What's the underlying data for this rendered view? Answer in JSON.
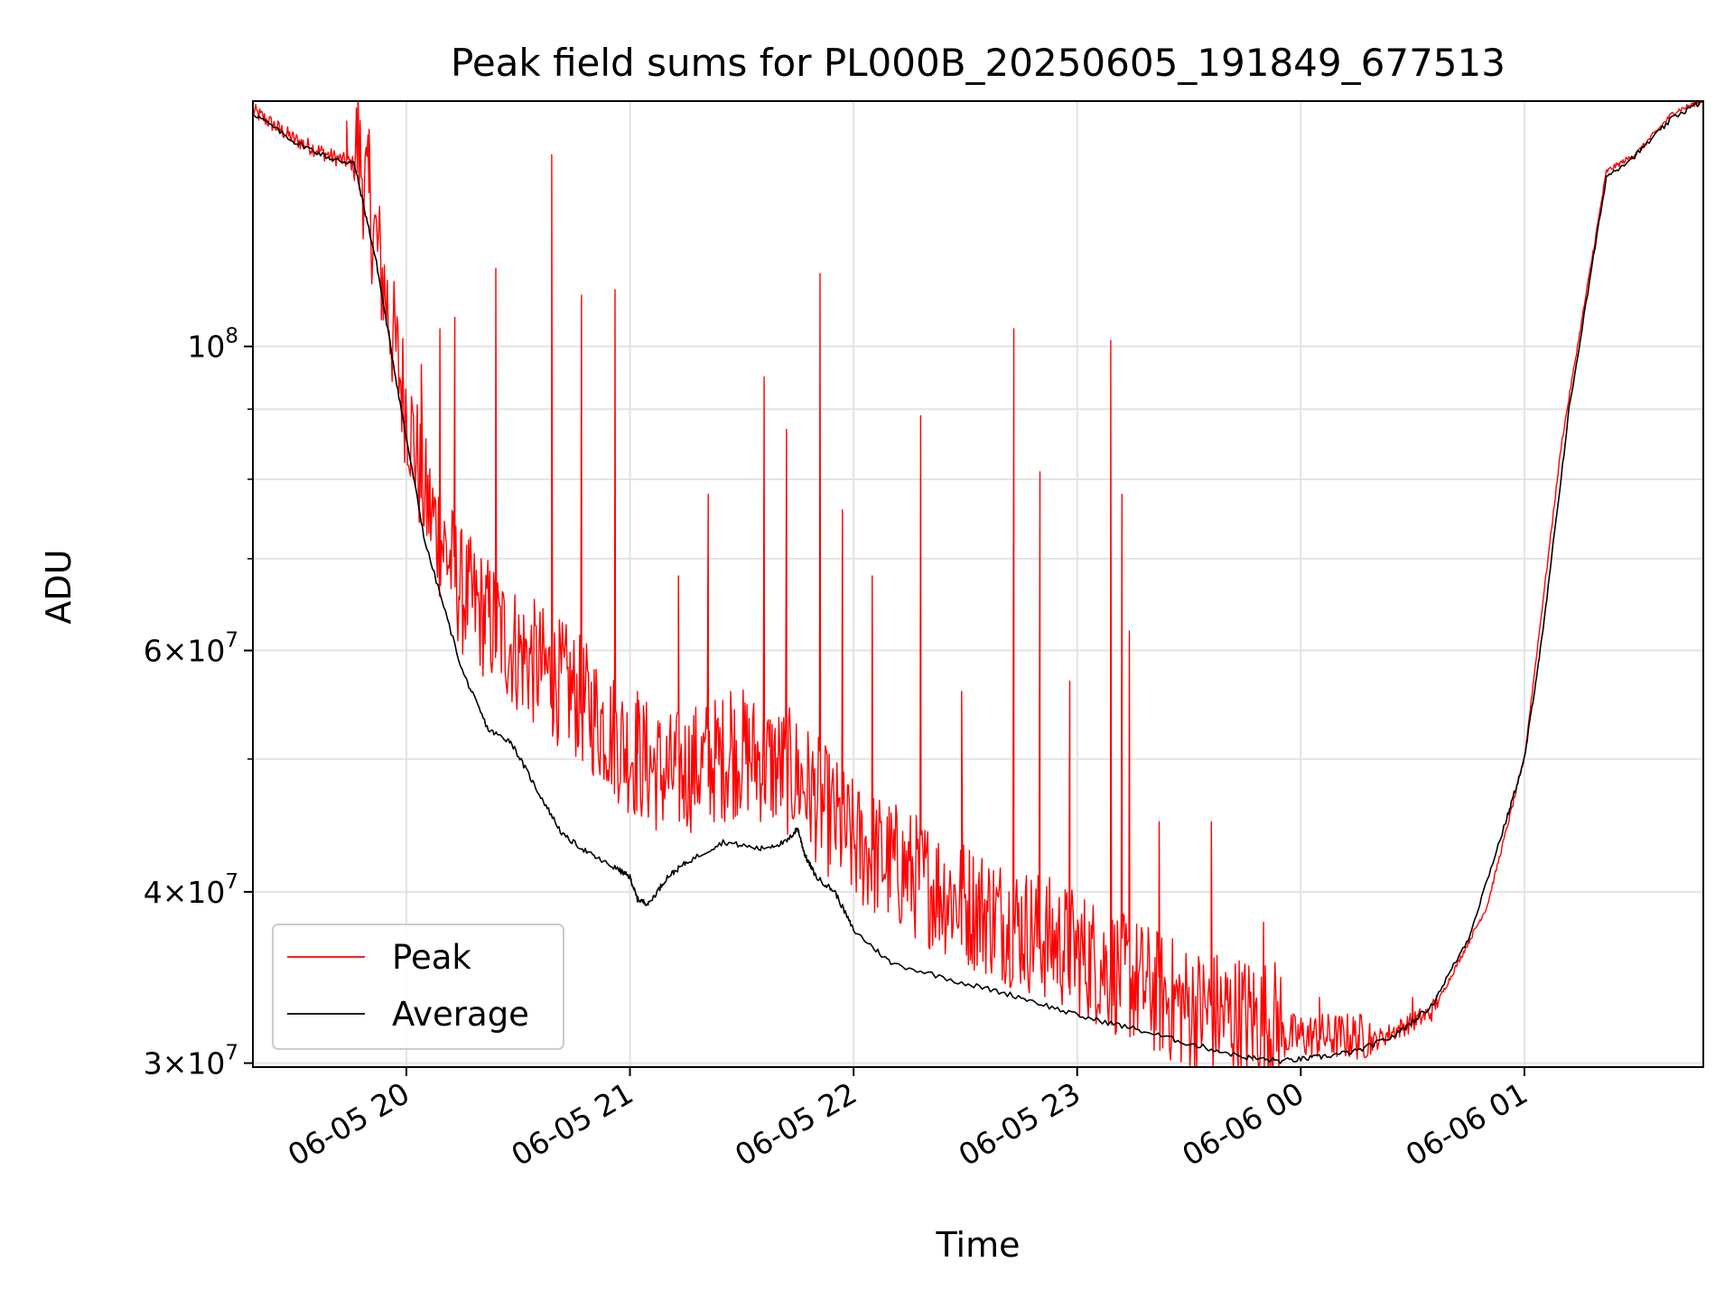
{
  "chart_data": {
    "type": "line",
    "title": "Peak field sums for PL000B_20250605_191849_677513",
    "xlabel": "Time",
    "ylabel": "ADU",
    "y_scale": "log",
    "ylim": [
      29800000,
      151000000
    ],
    "xlim": [
      "2025-06-05 19:18:49",
      "2025-06-06 01:48:00"
    ],
    "grid": true,
    "legend_position": "lower-left",
    "x_ticks": [
      {
        "value": "2025-06-05 20:00",
        "label": "06-05 20"
      },
      {
        "value": "2025-06-05 21:00",
        "label": "06-05 21"
      },
      {
        "value": "2025-06-05 22:00",
        "label": "06-05 22"
      },
      {
        "value": "2025-06-05 23:00",
        "label": "06-05 23"
      },
      {
        "value": "2025-06-06 00:00",
        "label": "06-06 00"
      },
      {
        "value": "2025-06-06 01:00",
        "label": "06-06 01"
      }
    ],
    "y_ticks": [
      {
        "value": 30000000,
        "mantissa": "3",
        "exponent": "7"
      },
      {
        "value": 40000000,
        "mantissa": "4",
        "exponent": "7"
      },
      {
        "value": 60000000,
        "mantissa": "6",
        "exponent": "7"
      },
      {
        "value": 100000000,
        "mantissa": "",
        "exponent": "8"
      }
    ],
    "y_minor_ticks": [
      50000000,
      70000000,
      80000000,
      90000000
    ],
    "series": [
      {
        "name": "Peak",
        "color": "#ff0000",
        "baseline": [
          [
            "2025-06-05 19:18:49",
            148000000
          ],
          [
            "2025-06-05 19:30",
            141000000
          ],
          [
            "2025-06-05 19:40",
            137000000
          ],
          [
            "2025-06-05 19:47",
            135000000
          ],
          [
            "2025-06-05 19:52",
            115000000
          ],
          [
            "2025-06-05 19:58",
            93000000
          ],
          [
            "2025-06-05 20:05",
            75000000
          ],
          [
            "2025-06-05 20:15",
            64000000
          ],
          [
            "2025-06-05 20:30",
            58000000
          ],
          [
            "2025-06-05 20:45",
            54000000
          ],
          [
            "2025-06-05 21:00",
            49000000
          ],
          [
            "2025-06-05 21:10",
            47000000
          ],
          [
            "2025-06-05 21:30",
            49000000
          ],
          [
            "2025-06-05 21:45",
            47000000
          ],
          [
            "2025-06-05 22:00",
            42000000
          ],
          [
            "2025-06-05 22:30",
            38000000
          ],
          [
            "2025-06-05 23:00",
            35000000
          ],
          [
            "2025-06-05 23:30",
            31800000
          ],
          [
            "2025-06-05 23:55",
            31000000
          ],
          [
            "2025-06-06 00:20",
            31000000
          ],
          [
            "2025-06-06 00:35",
            32500000
          ],
          [
            "2025-06-06 00:50",
            39000000
          ],
          [
            "2025-06-06 01:00",
            50000000
          ],
          [
            "2025-06-06 01:10",
            85000000
          ],
          [
            "2025-06-06 01:22",
            134000000
          ],
          [
            "2025-06-06 01:30",
            138000000
          ],
          [
            "2025-06-06 01:40",
            148000000
          ],
          [
            "2025-06-06 01:48",
            151000000
          ]
        ],
        "spikes": [
          [
            "2025-06-05 19:44",
            146000000
          ],
          [
            "2025-06-05 19:47",
            151000000
          ],
          [
            "2025-06-05 19:50",
            144000000
          ],
          [
            "2025-06-05 20:04",
            97000000
          ],
          [
            "2025-06-05 20:09",
            103000000
          ],
          [
            "2025-06-05 20:13",
            105000000
          ],
          [
            "2025-06-05 20:24",
            114000000
          ],
          [
            "2025-06-05 20:39",
            138000000
          ],
          [
            "2025-06-05 20:47",
            109000000
          ],
          [
            "2025-06-05 20:56",
            110000000
          ],
          [
            "2025-06-05 21:02",
            56000000
          ],
          [
            "2025-06-05 21:13",
            68000000
          ],
          [
            "2025-06-05 21:21",
            78000000
          ],
          [
            "2025-06-05 21:27",
            56000000
          ],
          [
            "2025-06-05 21:36",
            95000000
          ],
          [
            "2025-06-05 21:42",
            87000000
          ],
          [
            "2025-06-05 21:51",
            113000000
          ],
          [
            "2025-06-05 21:57",
            76000000
          ],
          [
            "2025-06-05 22:05",
            68000000
          ],
          [
            "2025-06-05 22:18",
            89000000
          ],
          [
            "2025-06-05 22:29",
            56000000
          ],
          [
            "2025-06-05 22:43",
            103000000
          ],
          [
            "2025-06-05 22:50",
            81000000
          ],
          [
            "2025-06-05 22:58",
            57000000
          ],
          [
            "2025-06-05 23:09",
            101000000
          ],
          [
            "2025-06-05 23:12",
            78000000
          ],
          [
            "2025-06-05 23:14",
            62000000
          ],
          [
            "2025-06-05 23:22",
            45000000
          ],
          [
            "2025-06-05 23:36",
            45000000
          ],
          [
            "2025-06-05 23:50",
            38000000
          ],
          [
            "2025-06-06 00:05",
            33500000
          ],
          [
            "2025-06-06 00:30",
            33500000
          ]
        ]
      },
      {
        "name": "Average",
        "color": "#000000",
        "points": [
          [
            "2025-06-05 19:18:49",
            148000000
          ],
          [
            "2025-06-05 19:30",
            141000000
          ],
          [
            "2025-06-05 19:40",
            137000000
          ],
          [
            "2025-06-05 19:46",
            136000000
          ],
          [
            "2025-06-05 19:52",
            115000000
          ],
          [
            "2025-06-05 19:58",
            92000000
          ],
          [
            "2025-06-05 20:05",
            72000000
          ],
          [
            "2025-06-05 20:15",
            58000000
          ],
          [
            "2025-06-05 20:22",
            52500000
          ],
          [
            "2025-06-05 20:28",
            51500000
          ],
          [
            "2025-06-05 20:35",
            47500000
          ],
          [
            "2025-06-05 20:42",
            44000000
          ],
          [
            "2025-06-05 20:50",
            42500000
          ],
          [
            "2025-06-05 20:57",
            41500000
          ],
          [
            "2025-06-05 21:00",
            41000000
          ],
          [
            "2025-06-05 21:02",
            39500000
          ],
          [
            "2025-06-05 21:05",
            39200000
          ],
          [
            "2025-06-05 21:10",
            41000000
          ],
          [
            "2025-06-05 21:15",
            42000000
          ],
          [
            "2025-06-05 21:25",
            43500000
          ],
          [
            "2025-06-05 21:35",
            43000000
          ],
          [
            "2025-06-05 21:42",
            43500000
          ],
          [
            "2025-06-05 21:45",
            44500000
          ],
          [
            "2025-06-05 21:47",
            42500000
          ],
          [
            "2025-06-05 21:50",
            41000000
          ],
          [
            "2025-06-05 21:55",
            40000000
          ],
          [
            "2025-06-05 22:00",
            37500000
          ],
          [
            "2025-06-05 22:10",
            35500000
          ],
          [
            "2025-06-05 22:30",
            34300000
          ],
          [
            "2025-06-05 22:45",
            33500000
          ],
          [
            "2025-06-05 23:00",
            32500000
          ],
          [
            "2025-06-05 23:15",
            31800000
          ],
          [
            "2025-06-05 23:30",
            31000000
          ],
          [
            "2025-06-05 23:45",
            30300000
          ],
          [
            "2025-06-05 23:55",
            30100000
          ],
          [
            "2025-06-06 00:05",
            30300000
          ],
          [
            "2025-06-06 00:15",
            30600000
          ],
          [
            "2025-06-06 00:25",
            31400000
          ],
          [
            "2025-06-06 00:35",
            33000000
          ],
          [
            "2025-06-06 00:45",
            37000000
          ],
          [
            "2025-06-06 00:55",
            45000000
          ],
          [
            "2025-06-06 01:00",
            50000000
          ],
          [
            "2025-06-06 01:05",
            62000000
          ],
          [
            "2025-06-06 01:12",
            90000000
          ],
          [
            "2025-06-06 01:22",
            133000000
          ],
          [
            "2025-06-06 01:30",
            138000000
          ],
          [
            "2025-06-06 01:40",
            147000000
          ],
          [
            "2025-06-06 01:48",
            151000000
          ]
        ]
      }
    ]
  }
}
